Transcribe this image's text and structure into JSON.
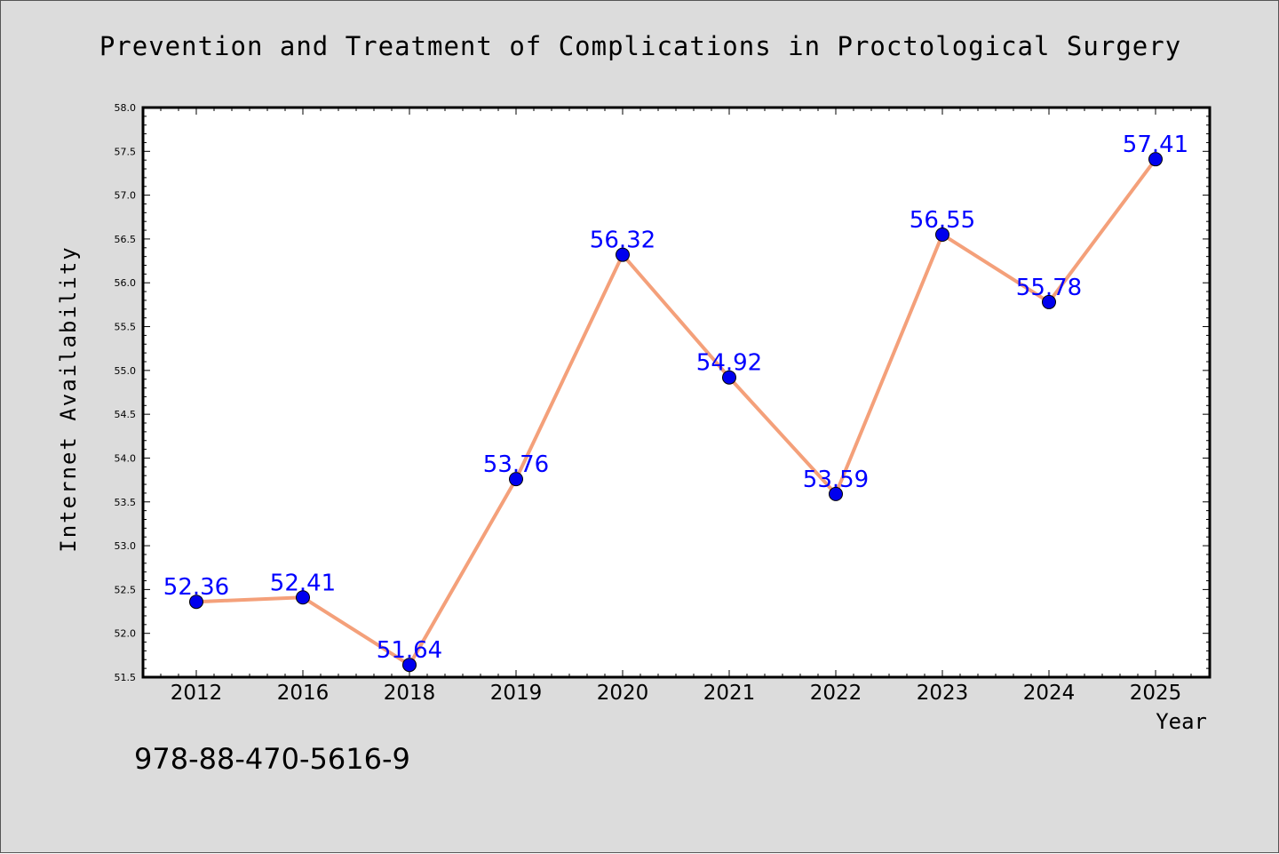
{
  "chart_data": {
    "type": "line",
    "title": "Prevention and Treatment of Complications in Proctological Surgery",
    "xlabel": "Year",
    "ylabel": "Internet Availability",
    "categories": [
      "2012",
      "2016",
      "2018",
      "2019",
      "2020",
      "2021",
      "2022",
      "2023",
      "2024",
      "2025"
    ],
    "series": [
      {
        "values": [
          52.36,
          52.41,
          51.64,
          53.76,
          56.32,
          54.92,
          53.59,
          56.55,
          55.78,
          57.41
        ]
      }
    ],
    "ylim": [
      51.5,
      58.0
    ],
    "yticks": [
      "51.5",
      "52.0",
      "52.5",
      "53.0",
      "53.5",
      "54.0",
      "54.5",
      "55.0",
      "55.5",
      "56.0",
      "56.5",
      "57.0",
      "57.5",
      "58.0"
    ],
    "grid": false,
    "legend": "none",
    "data_labels": true,
    "colors": {
      "line": "#f4a07a",
      "marker": "#0000ee",
      "label": "#0000ff",
      "background": "#dcdcdc",
      "plot_area": "#ffffff"
    }
  },
  "footer": {
    "isbn": "978-88-470-5616-9"
  }
}
